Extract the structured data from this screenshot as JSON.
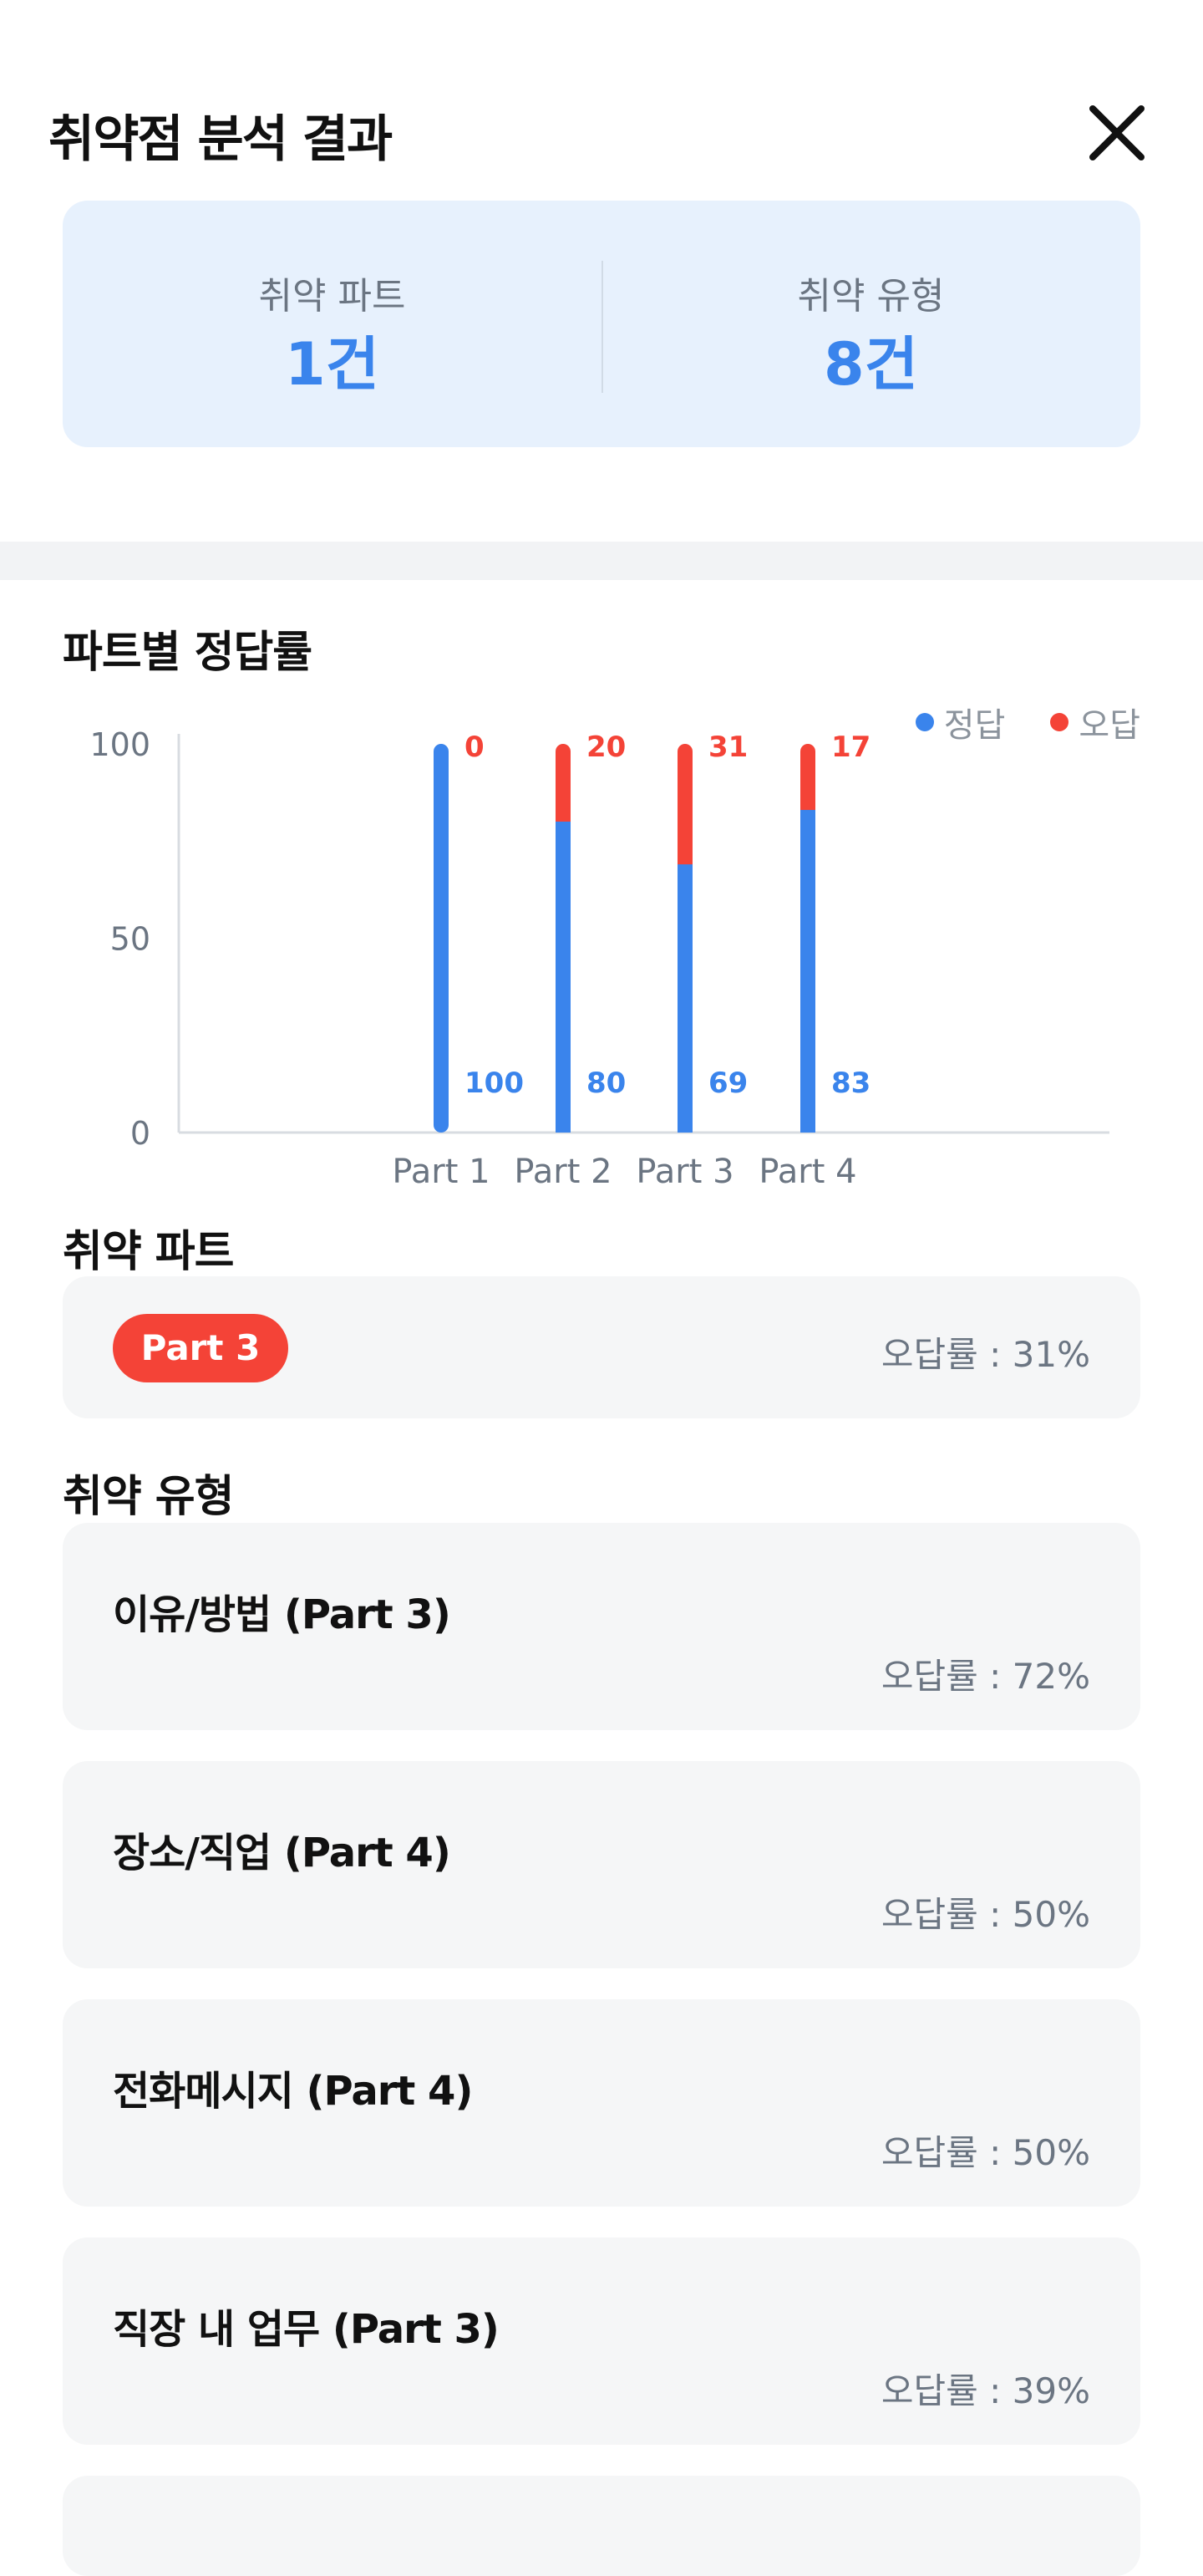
{
  "header": {
    "title": "취약점 분석 결과"
  },
  "summary": {
    "weak_part_label": "취약 파트",
    "weak_part_value": "1건",
    "weak_type_label": "취약 유형",
    "weak_type_value": "8건"
  },
  "chart_section": {
    "title": "파트별 정답률"
  },
  "legend": {
    "correct": "정답",
    "wrong": "오답"
  },
  "colors": {
    "correct": "#3a84ec",
    "wrong": "#f44337",
    "accent_bg": "#e7f1fd"
  },
  "chart_data": {
    "type": "bar",
    "stacked": true,
    "categories": [
      "Part 1",
      "Part 2",
      "Part 3",
      "Part 4"
    ],
    "series": [
      {
        "name": "정답",
        "values": [
          100,
          80,
          69,
          83
        ]
      },
      {
        "name": "오답",
        "values": [
          0,
          20,
          31,
          17
        ]
      }
    ],
    "yticks": [
      0,
      50,
      100
    ],
    "ylim": [
      0,
      100
    ],
    "legend_position": "top-right"
  },
  "weak_part_section": {
    "title": "취약 파트",
    "badge": "Part 3",
    "rate": "오답률 : 31%"
  },
  "weak_type_section": {
    "title": "취약 유형",
    "items": [
      {
        "name": "이유/방법 (Part 3)",
        "rate": "오답률 : 72%"
      },
      {
        "name": "장소/직업 (Part 4)",
        "rate": "오답률 : 50%"
      },
      {
        "name": "전화메시지 (Part 4)",
        "rate": "오답률 : 50%"
      },
      {
        "name": "직장 내 업무 (Part 3)",
        "rate": "오답률 : 39%"
      }
    ]
  }
}
